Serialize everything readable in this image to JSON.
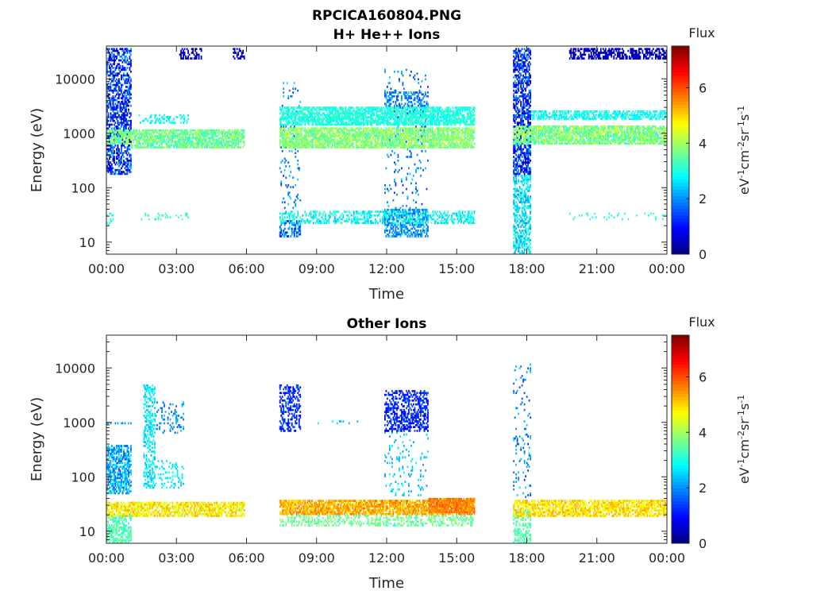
{
  "figure": {
    "title": "RPCICA160804.PNG"
  },
  "panels": [
    {
      "title": "H+ He++ Ions",
      "xlabel": "Time",
      "ylabel": "Energy (eV)",
      "colorbar_title": "Flux",
      "colorbar_label": "eV-1cm-2sr-1s-1"
    },
    {
      "title": "Other Ions",
      "xlabel": "Time",
      "ylabel": "Energy (eV)",
      "colorbar_title": "Flux",
      "colorbar_label": "eV-1cm-2sr-1s-1"
    }
  ],
  "chart_data": [
    {
      "type": "heatmap",
      "title": "H+ He++ Ions",
      "xlabel": "Time",
      "ylabel": "Energy (eV)",
      "x_ticks": [
        "00:00",
        "03:00",
        "06:00",
        "09:00",
        "12:00",
        "15:00",
        "18:00",
        "21:00",
        "00:00"
      ],
      "x_range_hours": [
        0,
        24
      ],
      "y_scale": "log",
      "y_ticks": [
        10,
        100,
        1000,
        10000
      ],
      "y_tick_labels": [
        "10",
        "100",
        "1000",
        "10000"
      ],
      "y_range": [
        6,
        40000
      ],
      "colorbar": {
        "title": "Flux",
        "ticks": [
          0,
          2,
          4,
          6
        ],
        "range": [
          0,
          7.5
        ],
        "colormap": "jet"
      },
      "grid": false,
      "regions": [
        {
          "t0": 0.0,
          "t1": 1.05,
          "e0": 180,
          "e1": 38000,
          "f0": 0.2,
          "f1": 2.2,
          "density": 0.55
        },
        {
          "t0": 0.0,
          "t1": 1.05,
          "e0": 600,
          "e1": 1200,
          "f0": 3.0,
          "f1": 4.3,
          "density": 0.8
        },
        {
          "t0": 1.4,
          "t1": 3.5,
          "e0": 1500,
          "e1": 2200,
          "f0": 2.5,
          "f1": 3.2,
          "density": 0.35
        },
        {
          "t0": 1.0,
          "t1": 5.9,
          "e0": 550,
          "e1": 1200,
          "f0": 3.0,
          "f1": 4.2,
          "density": 0.75
        },
        {
          "t0": 3.1,
          "t1": 4.1,
          "e0": 22000,
          "e1": 38000,
          "f0": 0.2,
          "f1": 0.8,
          "density": 0.5
        },
        {
          "t0": 5.4,
          "t1": 5.9,
          "e0": 22000,
          "e1": 38000,
          "f0": 0.2,
          "f1": 0.8,
          "density": 0.5
        },
        {
          "t0": 1.5,
          "t1": 3.5,
          "e0": 25,
          "e1": 35,
          "f0": 3.0,
          "f1": 3.6,
          "density": 0.15
        },
        {
          "t0": 7.4,
          "t1": 15.8,
          "e0": 1400,
          "e1": 3000,
          "f0": 2.7,
          "f1": 3.4,
          "density": 0.75
        },
        {
          "t0": 7.4,
          "t1": 15.8,
          "e0": 550,
          "e1": 1300,
          "f0": 3.2,
          "f1": 4.4,
          "density": 0.8
        },
        {
          "t0": 7.4,
          "t1": 15.8,
          "e0": 22,
          "e1": 38,
          "f0": 2.3,
          "f1": 3.4,
          "density": 0.5
        },
        {
          "t0": 7.4,
          "t1": 8.3,
          "e0": 12,
          "e1": 25,
          "f0": 1.0,
          "f1": 2.5,
          "density": 0.5
        },
        {
          "t0": 7.4,
          "t1": 8.3,
          "e0": 40,
          "e1": 9000,
          "f0": 1.2,
          "f1": 2.6,
          "density": 0.08
        },
        {
          "t0": 11.9,
          "t1": 13.8,
          "e0": 2500,
          "e1": 6000,
          "f0": 1.3,
          "f1": 2.3,
          "density": 0.35
        },
        {
          "t0": 11.9,
          "t1": 13.8,
          "e0": 40,
          "e1": 15000,
          "f0": 1.2,
          "f1": 2.5,
          "density": 0.08
        },
        {
          "t0": 11.9,
          "t1": 13.8,
          "e0": 12,
          "e1": 40,
          "f0": 1.5,
          "f1": 2.5,
          "density": 0.55
        },
        {
          "t0": 17.4,
          "t1": 18.2,
          "e0": 180,
          "e1": 38000,
          "f0": 0.2,
          "f1": 2.2,
          "density": 0.6
        },
        {
          "t0": 17.4,
          "t1": 18.2,
          "e0": 6,
          "e1": 180,
          "f0": 2.0,
          "f1": 3.3,
          "density": 0.55
        },
        {
          "t0": 17.4,
          "t1": 24.0,
          "e0": 600,
          "e1": 1400,
          "f0": 3.0,
          "f1": 4.5,
          "density": 0.8
        },
        {
          "t0": 18.2,
          "t1": 24.0,
          "e0": 1700,
          "e1": 2600,
          "f0": 2.6,
          "f1": 3.2,
          "density": 0.6
        },
        {
          "t0": 19.8,
          "t1": 24.0,
          "e0": 22000,
          "e1": 38000,
          "f0": 0.2,
          "f1": 0.8,
          "density": 0.6
        },
        {
          "t0": 19.8,
          "t1": 24.0,
          "e0": 25,
          "e1": 35,
          "f0": 2.8,
          "f1": 3.4,
          "density": 0.12
        },
        {
          "t0": 0.0,
          "t1": 0.3,
          "e0": 20,
          "e1": 35,
          "f0": 2.8,
          "f1": 3.3,
          "density": 0.4
        }
      ]
    },
    {
      "type": "heatmap",
      "title": "Other Ions",
      "xlabel": "Time",
      "ylabel": "Energy (eV)",
      "x_ticks": [
        "00:00",
        "03:00",
        "06:00",
        "09:00",
        "12:00",
        "15:00",
        "18:00",
        "21:00",
        "00:00"
      ],
      "x_range_hours": [
        0,
        24
      ],
      "y_scale": "log",
      "y_ticks": [
        10,
        100,
        1000,
        10000
      ],
      "y_tick_labels": [
        "10",
        "100",
        "1000",
        "10000"
      ],
      "y_range": [
        6,
        40000
      ],
      "colorbar": {
        "title": "Flux",
        "ticks": [
          0,
          2,
          4,
          6
        ],
        "range": [
          0,
          7.5
        ],
        "colormap": "jet"
      },
      "grid": false,
      "regions": [
        {
          "t0": 0.0,
          "t1": 1.05,
          "e0": 50,
          "e1": 400,
          "f0": 1.5,
          "f1": 2.8,
          "density": 0.6
        },
        {
          "t0": 0.0,
          "t1": 1.05,
          "e0": 6,
          "e1": 20,
          "f0": 3.0,
          "f1": 3.8,
          "density": 0.6
        },
        {
          "t0": 0.0,
          "t1": 1.05,
          "e0": 900,
          "e1": 1000,
          "f0": 1.8,
          "f1": 2.4,
          "density": 0.4
        },
        {
          "t0": 0.0,
          "t1": 5.9,
          "e0": 18,
          "e1": 35,
          "f0": 4.2,
          "f1": 5.4,
          "density": 0.7
        },
        {
          "t0": 1.6,
          "t1": 2.1,
          "e0": 60,
          "e1": 5000,
          "f0": 2.2,
          "f1": 3.2,
          "density": 0.45
        },
        {
          "t0": 2.1,
          "t1": 3.3,
          "e0": 600,
          "e1": 2500,
          "f0": 1.5,
          "f1": 2.5,
          "density": 0.2
        },
        {
          "t0": 2.1,
          "t1": 3.3,
          "e0": 60,
          "e1": 200,
          "f0": 2.4,
          "f1": 3.0,
          "density": 0.2
        },
        {
          "t0": 7.4,
          "t1": 15.8,
          "e0": 20,
          "e1": 38,
          "f0": 4.8,
          "f1": 5.8,
          "density": 0.8
        },
        {
          "t0": 7.4,
          "t1": 15.8,
          "e0": 12,
          "e1": 20,
          "f0": 3.2,
          "f1": 4.0,
          "density": 0.35
        },
        {
          "t0": 7.4,
          "t1": 8.3,
          "e0": 700,
          "e1": 5000,
          "f0": 0.9,
          "f1": 1.6,
          "density": 0.45
        },
        {
          "t0": 11.9,
          "t1": 13.8,
          "e0": 700,
          "e1": 4000,
          "f0": 0.8,
          "f1": 1.6,
          "density": 0.5
        },
        {
          "t0": 11.9,
          "t1": 13.8,
          "e0": 40,
          "e1": 700,
          "f0": 2.0,
          "f1": 2.8,
          "density": 0.08
        },
        {
          "t0": 13.8,
          "t1": 15.8,
          "e0": 22,
          "e1": 40,
          "f0": 5.2,
          "f1": 6.0,
          "density": 0.85
        },
        {
          "t0": 9.0,
          "t1": 11.5,
          "e0": 900,
          "e1": 1100,
          "f0": 2.2,
          "f1": 2.8,
          "density": 0.06
        },
        {
          "t0": 17.4,
          "t1": 18.2,
          "e0": 6,
          "e1": 25,
          "f0": 3.0,
          "f1": 3.8,
          "density": 0.5
        },
        {
          "t0": 17.4,
          "t1": 18.2,
          "e0": 40,
          "e1": 12000,
          "f0": 1.2,
          "f1": 2.6,
          "density": 0.12
        },
        {
          "t0": 17.4,
          "t1": 24.0,
          "e0": 18,
          "e1": 38,
          "f0": 4.4,
          "f1": 5.4,
          "density": 0.7
        }
      ]
    }
  ]
}
